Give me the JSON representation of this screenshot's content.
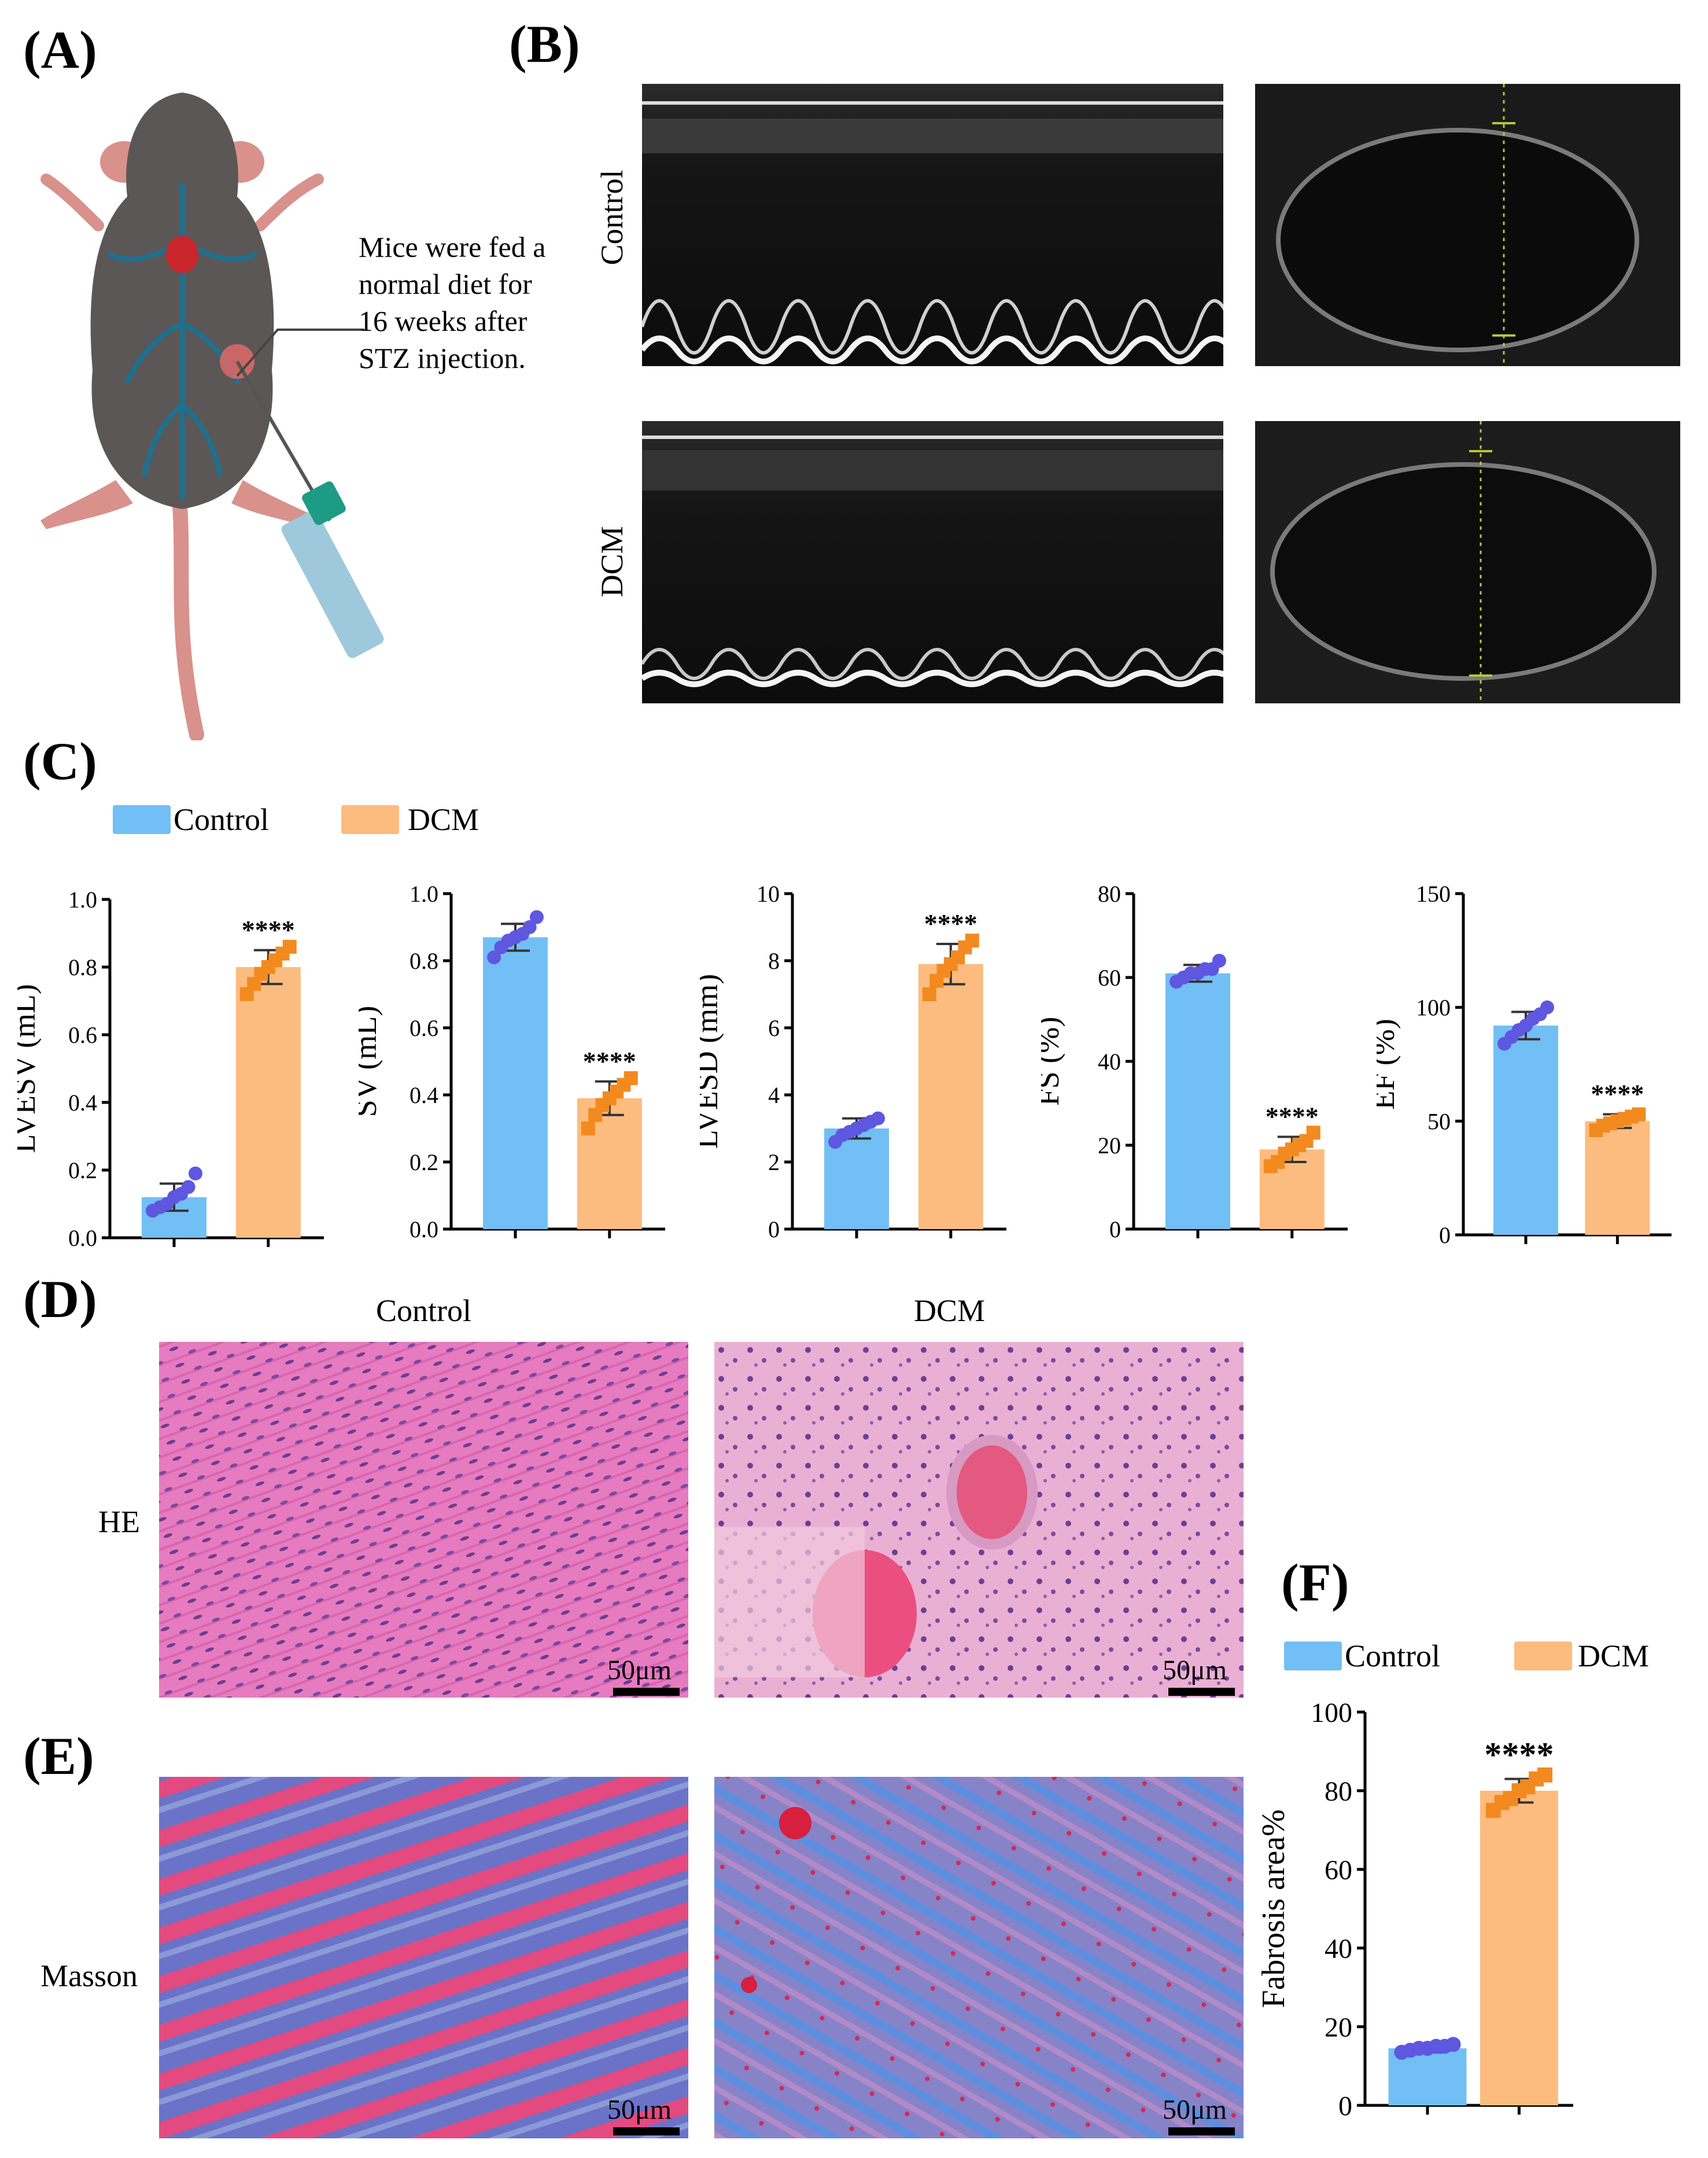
{
  "panels": {
    "A": "(A)",
    "B": "(B)",
    "C": "(C)",
    "D": "(D)",
    "E": "(E)",
    "F": "(F)"
  },
  "panelA": {
    "annotation": [
      "Mice were fed a",
      "normal diet for",
      "16 weeks after",
      "STZ injection."
    ]
  },
  "panelB": {
    "row_labels": [
      "Control",
      "DCM"
    ]
  },
  "legend": {
    "control": "Control",
    "dcm": "DCM",
    "colors": {
      "control": "#72bff5",
      "dcm": "#fdbc7f",
      "control_dot": "#5e57e0",
      "dcm_dot": "#f38a1f"
    }
  },
  "histology": {
    "columns": [
      "Control",
      "DCM"
    ],
    "rows": [
      "HE",
      "Masson"
    ],
    "scale": "50μm"
  },
  "chart_data": [
    {
      "type": "bar",
      "panel": "C",
      "ylabel": "LVESV (mL)",
      "ylim": [
        0,
        1.0
      ],
      "yticks": [
        "0.0",
        "0.2",
        "0.4",
        "0.6",
        "0.8",
        "1.0"
      ],
      "ytick_values": [
        0,
        0.2,
        0.4,
        0.6,
        0.8,
        1.0
      ],
      "categories": [
        "Control",
        "DCM"
      ],
      "values": [
        0.12,
        0.8
      ],
      "sd": [
        0.04,
        0.05
      ],
      "points": [
        [
          0.08,
          0.09,
          0.1,
          0.12,
          0.13,
          0.15,
          0.19
        ],
        [
          0.72,
          0.75,
          0.78,
          0.8,
          0.82,
          0.84,
          0.86
        ]
      ],
      "significance": "****"
    },
    {
      "type": "bar",
      "panel": "C",
      "ylabel": "SV (mL)",
      "ylim": [
        0,
        1.0
      ],
      "yticks": [
        "0.0",
        "0.2",
        "0.4",
        "0.6",
        "0.8",
        "1.0"
      ],
      "ytick_values": [
        0,
        0.2,
        0.4,
        0.6,
        0.8,
        1.0
      ],
      "categories": [
        "Control",
        "DCM"
      ],
      "values": [
        0.87,
        0.39
      ],
      "sd": [
        0.04,
        0.05
      ],
      "points": [
        [
          0.81,
          0.84,
          0.86,
          0.87,
          0.88,
          0.9,
          0.93
        ],
        [
          0.3,
          0.34,
          0.37,
          0.39,
          0.41,
          0.43,
          0.45
        ]
      ],
      "significance": "****"
    },
    {
      "type": "bar",
      "panel": "C",
      "ylabel": "LVESD (mm)",
      "ylim": [
        0,
        10
      ],
      "yticks": [
        "0",
        "2",
        "4",
        "6",
        "8",
        "10"
      ],
      "ytick_values": [
        0,
        2,
        4,
        6,
        8,
        10
      ],
      "categories": [
        "Control",
        "DCM"
      ],
      "values": [
        3.0,
        7.9
      ],
      "sd": [
        0.3,
        0.6
      ],
      "points": [
        [
          2.6,
          2.8,
          2.9,
          3.0,
          3.1,
          3.2,
          3.3
        ],
        [
          7.0,
          7.4,
          7.7,
          7.9,
          8.1,
          8.4,
          8.6
        ]
      ],
      "significance": "****"
    },
    {
      "type": "bar",
      "panel": "C",
      "ylabel": "FS (%)",
      "ylim": [
        0,
        80
      ],
      "yticks": [
        "0",
        "20",
        "40",
        "60",
        "80"
      ],
      "ytick_values": [
        0,
        20,
        40,
        60,
        80
      ],
      "categories": [
        "Control",
        "DCM"
      ],
      "values": [
        61,
        19
      ],
      "sd": [
        2,
        3
      ],
      "points": [
        [
          59,
          60,
          61,
          61,
          62,
          62,
          64
        ],
        [
          15,
          16,
          18,
          19,
          20,
          21,
          23
        ]
      ],
      "significance": "****"
    },
    {
      "type": "bar",
      "panel": "C",
      "ylabel": "EF (%)",
      "ylim": [
        0,
        150
      ],
      "yticks": [
        "0",
        "50",
        "100",
        "150"
      ],
      "ytick_values": [
        0,
        50,
        100,
        150
      ],
      "categories": [
        "Control",
        "DCM"
      ],
      "values": [
        92,
        50
      ],
      "sd": [
        6,
        3
      ],
      "points": [
        [
          84,
          87,
          90,
          92,
          95,
          97,
          100
        ],
        [
          46,
          48,
          49,
          50,
          51,
          52,
          53
        ]
      ],
      "significance": "****"
    },
    {
      "type": "bar",
      "panel": "F",
      "ylabel": "Fabrosis area%",
      "ylim": [
        0,
        100
      ],
      "yticks": [
        "0",
        "20",
        "40",
        "60",
        "80",
        "100"
      ],
      "ytick_values": [
        0,
        20,
        40,
        60,
        80,
        100
      ],
      "categories": [
        "Control",
        "DCM"
      ],
      "values": [
        14.5,
        80
      ],
      "sd": [
        1,
        3
      ],
      "points": [
        [
          13.5,
          14,
          14.5,
          14.5,
          15,
          15,
          15.5
        ],
        [
          75,
          77,
          78,
          80,
          81,
          83,
          84
        ]
      ],
      "significance": "****"
    }
  ]
}
